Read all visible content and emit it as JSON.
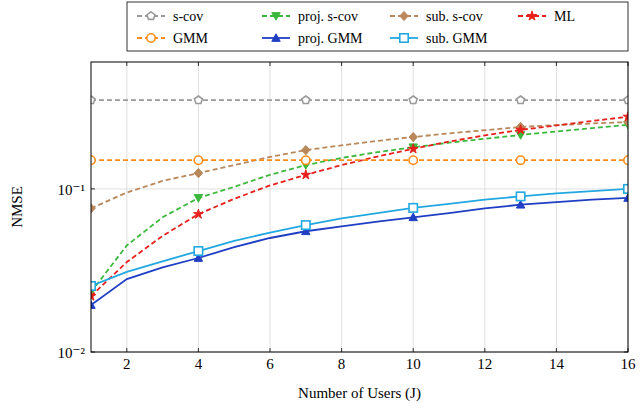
{
  "chart_data": {
    "type": "line",
    "x_label": "Number of Users (J)",
    "y_label": "NMSE",
    "log": "y",
    "grid": true,
    "legend": "top",
    "x": [
      1,
      2,
      3,
      4,
      5,
      6,
      7,
      8,
      9,
      10,
      11,
      12,
      13,
      14,
      15,
      16
    ],
    "xlim": [
      1,
      16
    ],
    "xticks": [
      2,
      4,
      6,
      8,
      10,
      12,
      14,
      16
    ],
    "ylim": [
      0.01,
      0.6
    ],
    "yticks": [
      {
        "value": 0.01,
        "label": "10⁻²"
      },
      {
        "value": 0.1,
        "label": "10⁻¹"
      }
    ],
    "series": [
      {
        "name": "s-cov",
        "color": "#9a9a9a",
        "marker": "pentagon",
        "line_style": "dashed",
        "values": [
          0.35,
          0.35,
          0.35,
          0.35,
          0.35,
          0.35,
          0.35,
          0.35,
          0.35,
          0.35,
          0.35,
          0.35,
          0.35,
          0.35,
          0.35,
          0.35
        ]
      },
      {
        "name": "proj. s-cov",
        "color": "#3cb83c",
        "marker": "triangle-down",
        "line_style": "dashed",
        "values": [
          0.0233,
          0.045,
          0.067,
          0.088,
          0.103,
          0.122,
          0.14,
          0.155,
          0.168,
          0.18,
          0.192,
          0.203,
          0.214,
          0.225,
          0.236,
          0.247
        ]
      },
      {
        "name": "sub. s-cov",
        "color": "#b8875a",
        "marker": "diamond",
        "line_style": "dashed",
        "values": [
          0.076,
          0.095,
          0.112,
          0.125,
          0.14,
          0.157,
          0.173,
          0.185,
          0.197,
          0.208,
          0.219,
          0.229,
          0.24,
          0.246,
          0.252,
          0.257
        ]
      },
      {
        "name": "ML",
        "color": "#e8201c",
        "marker": "star",
        "line_style": "dashed",
        "values": [
          0.022,
          0.0356,
          0.0515,
          0.07,
          0.087,
          0.105,
          0.122,
          0.14,
          0.158,
          0.176,
          0.195,
          0.213,
          0.23,
          0.245,
          0.261,
          0.277
        ]
      },
      {
        "name": "GMM",
        "color": "#ff8c1a",
        "marker": "circle",
        "line_style": "dashed",
        "values": [
          0.15,
          0.15,
          0.15,
          0.15,
          0.15,
          0.15,
          0.15,
          0.15,
          0.15,
          0.15,
          0.15,
          0.15,
          0.15,
          0.15,
          0.15,
          0.15
        ]
      },
      {
        "name": "proj. GMM",
        "color": "#1f3ec4",
        "marker": "triangle-up",
        "line_style": "solid",
        "values": [
          0.0194,
          0.028,
          0.033,
          0.0377,
          0.044,
          0.05,
          0.055,
          0.059,
          0.063,
          0.067,
          0.071,
          0.076,
          0.08,
          0.083,
          0.086,
          0.088
        ]
      },
      {
        "name": "sub. GMM",
        "color": "#22a8e0",
        "marker": "square",
        "line_style": "solid",
        "values": [
          0.0254,
          0.031,
          0.036,
          0.0416,
          0.048,
          0.054,
          0.06,
          0.066,
          0.071,
          0.0765,
          0.081,
          0.086,
          0.09,
          0.094,
          0.097,
          0.1
        ]
      }
    ]
  }
}
